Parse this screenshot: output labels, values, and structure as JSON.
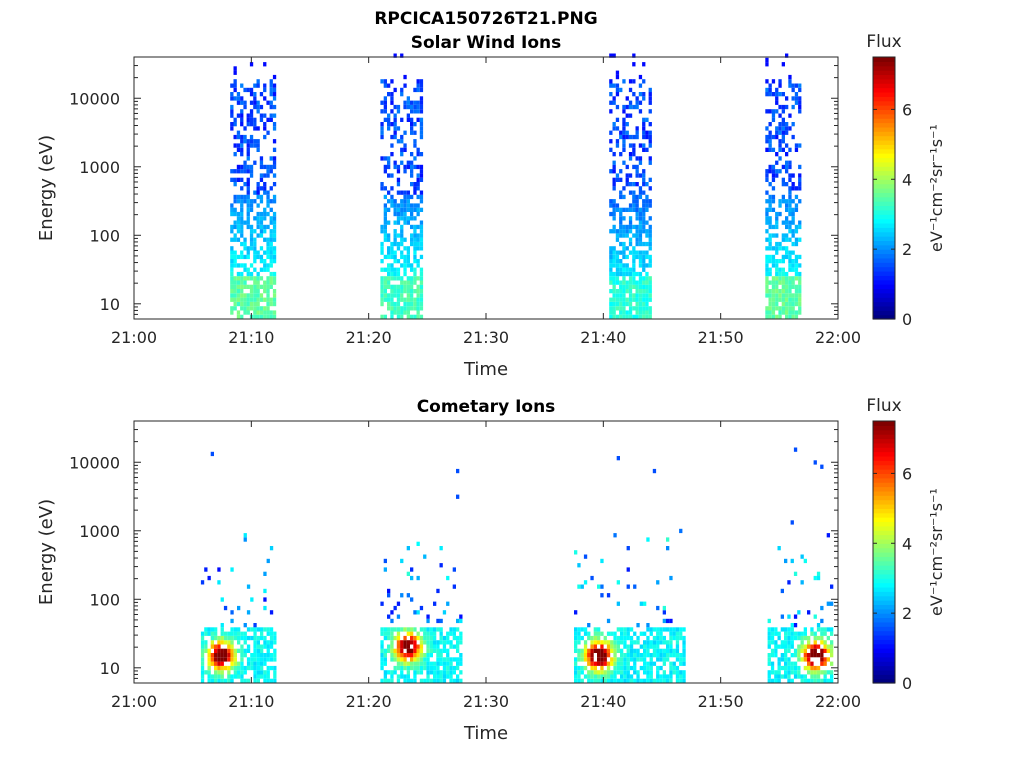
{
  "figure": {
    "filename": "RPCICA150726T21.PNG"
  },
  "chart_data": [
    {
      "type": "heatmap",
      "title": "Solar Wind Ions",
      "xlabel": "Time",
      "ylabel": "Energy (eV)",
      "x_ticks": [
        "21:00",
        "21:10",
        "21:20",
        "21:30",
        "21:40",
        "21:50",
        "22:00"
      ],
      "xlim_minutes": [
        0,
        60
      ],
      "y_scale": "log",
      "y_ticks": [
        10,
        100,
        1000,
        10000
      ],
      "y_tick_labels": [
        "10",
        "100",
        "1000",
        "10000"
      ],
      "ylim": [
        6,
        40000
      ],
      "colorbar": {
        "label": "Flux",
        "units": "eV⁻¹cm⁻²sr⁻¹s⁻¹",
        "range": [
          0,
          7.5
        ],
        "ticks": [
          "0",
          "2",
          "4",
          "6"
        ],
        "colormap": "jet"
      },
      "bursts": [
        {
          "start_min": 8.2,
          "end_min": 12.0,
          "flux_levels": [
            1.0,
            1.5,
            2.6,
            3.2
          ]
        },
        {
          "start_min": 21.0,
          "end_min": 24.5,
          "flux_levels": [
            1.0,
            1.5,
            2.6,
            3.0
          ]
        },
        {
          "start_min": 40.5,
          "end_min": 44.0,
          "flux_levels": [
            1.0,
            1.5,
            2.4,
            2.8
          ]
        },
        {
          "start_min": 53.8,
          "end_min": 56.8,
          "flux_levels": [
            1.0,
            1.5,
            2.6,
            3.2
          ]
        }
      ]
    },
    {
      "type": "heatmap",
      "title": "Cometary Ions",
      "xlabel": "Time",
      "ylabel": "Energy (eV)",
      "x_ticks": [
        "21:00",
        "21:10",
        "21:20",
        "21:30",
        "21:40",
        "21:50",
        "22:00"
      ],
      "xlim_minutes": [
        0,
        60
      ],
      "y_scale": "log",
      "y_ticks": [
        10,
        100,
        1000,
        10000
      ],
      "y_tick_labels": [
        "10",
        "100",
        "1000",
        "10000"
      ],
      "ylim": [
        6,
        40000
      ],
      "colorbar": {
        "label": "Flux",
        "units": "eV⁻¹cm⁻²sr⁻¹s⁻¹",
        "range": [
          0,
          7.5
        ],
        "ticks": [
          "0",
          "2",
          "4",
          "6"
        ],
        "colormap": "jet"
      },
      "bursts": [
        {
          "start_min": 5.7,
          "end_min": 12.0,
          "peak_min": 7.3,
          "peak_energy_ev": 15,
          "peak_flux": 5.5
        },
        {
          "start_min": 21.0,
          "end_min": 28.0,
          "peak_min": 23.2,
          "peak_energy_ev": 20,
          "peak_flux": 5.5
        },
        {
          "start_min": 37.5,
          "end_min": 47.0,
          "peak_min": 39.5,
          "peak_energy_ev": 15,
          "peak_flux": 6.0
        },
        {
          "start_min": 54.0,
          "end_min": 59.5,
          "peak_min": 58.0,
          "peak_energy_ev": 15,
          "peak_flux": 6.0
        }
      ]
    }
  ]
}
